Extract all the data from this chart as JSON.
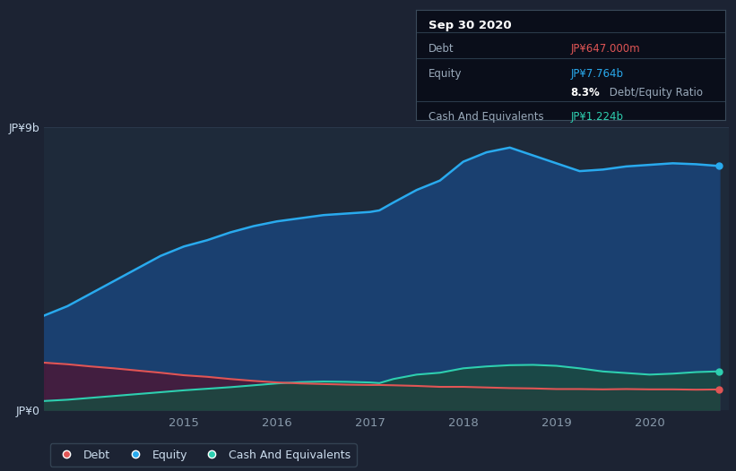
{
  "background_color": "#1c2333",
  "plot_bg_color": "#1e2a3a",
  "grid_color": "#2e3d50",
  "title_box": {
    "date": "Sep 30 2020",
    "debt_label": "Debt",
    "debt_value": "JP¥647.000m",
    "equity_label": "Equity",
    "equity_value": "JP¥7.764b",
    "ratio": "8.3% Debt/Equity Ratio",
    "cash_label": "Cash And Equivalents",
    "cash_value": "JP¥1.224b"
  },
  "ylabel_top": "JP¥9b",
  "ylabel_bottom": "JP¥0",
  "x_ticks": [
    "2015",
    "2016",
    "2017",
    "2018",
    "2019",
    "2020"
  ],
  "equity_color": "#29aaee",
  "equity_fill": "#1a4070",
  "debt_color": "#e05555",
  "debt_fill": "#4a1838",
  "cash_color": "#2ecfb0",
  "cash_fill": "#1a4a40",
  "x": [
    2013.5,
    2013.75,
    2014.0,
    2014.25,
    2014.5,
    2014.75,
    2015.0,
    2015.25,
    2015.5,
    2015.75,
    2016.0,
    2016.25,
    2016.5,
    2016.75,
    2017.0,
    2017.1,
    2017.25,
    2017.5,
    2017.75,
    2018.0,
    2018.25,
    2018.5,
    2018.75,
    2019.0,
    2019.25,
    2019.5,
    2019.75,
    2020.0,
    2020.25,
    2020.5,
    2020.75
  ],
  "equity": [
    3.0,
    3.3,
    3.7,
    4.1,
    4.5,
    4.9,
    5.2,
    5.4,
    5.65,
    5.85,
    6.0,
    6.1,
    6.2,
    6.25,
    6.3,
    6.35,
    6.6,
    7.0,
    7.3,
    7.9,
    8.2,
    8.35,
    8.1,
    7.85,
    7.6,
    7.65,
    7.75,
    7.8,
    7.85,
    7.82,
    7.764
  ],
  "debt": [
    1.5,
    1.45,
    1.38,
    1.32,
    1.25,
    1.18,
    1.1,
    1.05,
    0.98,
    0.92,
    0.87,
    0.84,
    0.82,
    0.8,
    0.79,
    0.79,
    0.78,
    0.76,
    0.73,
    0.73,
    0.71,
    0.69,
    0.68,
    0.66,
    0.66,
    0.65,
    0.66,
    0.65,
    0.65,
    0.64,
    0.647
  ],
  "cash": [
    0.28,
    0.32,
    0.38,
    0.44,
    0.5,
    0.56,
    0.62,
    0.67,
    0.72,
    0.78,
    0.84,
    0.88,
    0.9,
    0.89,
    0.87,
    0.85,
    0.98,
    1.12,
    1.18,
    1.32,
    1.38,
    1.42,
    1.43,
    1.4,
    1.32,
    1.22,
    1.17,
    1.12,
    1.15,
    1.2,
    1.224
  ],
  "ylim": [
    0,
    9.0
  ],
  "xlim": [
    2013.5,
    2020.85
  ]
}
